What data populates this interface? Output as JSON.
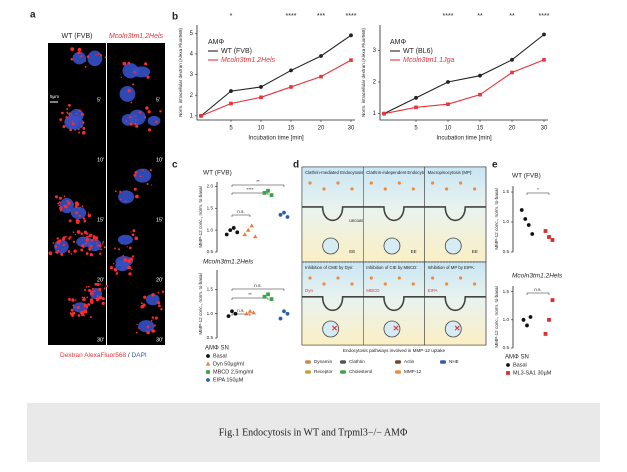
{
  "panel_labels": [
    "a",
    "b",
    "c",
    "d",
    "e"
  ],
  "panel_a": {
    "columns": [
      "WT (FVB)",
      "Mcoln3tm1.2Hels"
    ],
    "scale": "5µm",
    "times": [
      "5'",
      "10'",
      "15'",
      "20'",
      "30'"
    ],
    "footer_red": "Dextran AlexaFluor568",
    "footer_sep": " / ",
    "footer_blue": "DAPI"
  },
  "chart_data": [
    {
      "type": "line",
      "legend_title": "AMΦ",
      "x_label": "Incubation time [min]",
      "y_label": "Norm. intracellular dextran (Alexa Fluor568)",
      "categories": [
        null,
        "5",
        "10",
        "15",
        "20",
        "30"
      ],
      "significance": [
        null,
        "*",
        null,
        "****",
        "***",
        "****"
      ],
      "ylim": [
        0.8,
        5.4
      ],
      "yticks": [
        1,
        2,
        3,
        4,
        5
      ],
      "series": [
        {
          "name": "WT (FVB)",
          "color": "#222222",
          "values": [
            1,
            2.2,
            2.4,
            3.2,
            3.9,
            4.9
          ]
        },
        {
          "name": "Mcoln3tm1.2Hels",
          "color": "#e8333a",
          "values": [
            1,
            1.6,
            1.9,
            2.4,
            2.9,
            3.7
          ]
        }
      ]
    },
    {
      "type": "line",
      "legend_title": "AMΦ",
      "x_label": "Incubation time [min]",
      "y_label": "Norm. intracellular dextran (Alexa Fluor568)",
      "categories": [
        null,
        "5",
        "10",
        "15",
        "20",
        "30"
      ],
      "significance": [
        null,
        null,
        "****",
        "**",
        "**",
        "****"
      ],
      "ylim": [
        0.8,
        3.8
      ],
      "yticks": [
        1,
        2,
        3
      ],
      "series": [
        {
          "name": "WT (BL6)",
          "color": "#222222",
          "values": [
            1,
            1.5,
            2,
            2.2,
            2.7,
            3.5
          ]
        },
        {
          "name": "Mcoln3tm1.1Jga",
          "color": "#e8333a",
          "values": [
            1,
            1.2,
            1.3,
            1.6,
            2.3,
            2.7
          ]
        }
      ]
    },
    {
      "type": "dot",
      "title": "WT (FVB)",
      "y_label": "MMP-12 conc., norm. to basal",
      "legend_title": "AMΦ SN",
      "ylim": [
        0.5,
        2.1
      ],
      "yticks": [
        {
          "value": 0.5,
          "label": "0.5"
        },
        {
          "value": 1,
          "label": "1.0"
        },
        {
          "value": 1.5,
          "label": "1.5"
        },
        {
          "value": 2,
          "label": "2.0"
        }
      ],
      "brackets": [
        "**",
        "****",
        "n.s."
      ],
      "series": [
        {
          "name": "Basal",
          "color": "#111111",
          "marker": "circle",
          "values": [
            0.9,
            1.0,
            1.05,
            0.95
          ]
        },
        {
          "name": "Dyn 50µg/ml",
          "color": "#f07a3c",
          "marker": "triangle",
          "values": [
            0.9,
            1.0,
            1.1,
            0.85
          ]
        },
        {
          "name": "MBCD 2,5mg/ml",
          "color": "#3fa14a",
          "marker": "square",
          "values": [
            1.85,
            1.9,
            1.8
          ]
        },
        {
          "name": "EIPA 150µM",
          "color": "#2c5fa8",
          "marker": "circle",
          "values": [
            1.35,
            1.4,
            1.3
          ]
        }
      ]
    },
    {
      "type": "dot",
      "title": "Mcoln3tm1.2Hels",
      "y_label": "MMP-12 conc., norm. to basal",
      "ylim": [
        0.5,
        1.9
      ],
      "yticks": [
        {
          "value": 0.5,
          "label": "0.5"
        },
        {
          "value": 1,
          "label": "1.0"
        },
        {
          "value": 1.5,
          "label": "1.5"
        }
      ],
      "brackets": [
        "n.s.",
        "**",
        "n.s."
      ],
      "series": [
        {
          "color": "#111111",
          "marker": "circle",
          "values": [
            0.95,
            1.05,
            1.0
          ]
        },
        {
          "color": "#f07a3c",
          "marker": "triangle",
          "values": [
            1.0,
            1.05,
            1.02
          ]
        },
        {
          "color": "#3fa14a",
          "marker": "square",
          "values": [
            1.35,
            1.4,
            1.3
          ]
        },
        {
          "color": "#2c5fa8",
          "marker": "circle",
          "values": [
            0.9,
            1.05,
            1.0
          ]
        }
      ]
    },
    {
      "type": "dot",
      "title": "WT (FVB)",
      "y_label": "MMP-12 conc., norm. to basal",
      "legend_title": "AMΦ SN",
      "ylim": [
        0.5,
        1.6
      ],
      "yticks": [
        {
          "value": 0.5,
          "label": "0.5"
        },
        {
          "value": 1,
          "label": "1.0"
        },
        {
          "value": 1.5,
          "label": "1.5"
        }
      ],
      "brackets": [
        "*"
      ],
      "series": [
        {
          "name": "Basal",
          "color": "#111111",
          "marker": "circle",
          "values": [
            1.2,
            1.05,
            0.95,
            0.8
          ]
        },
        {
          "name": "ML3-SA1 30µM",
          "color": "#d62f2f",
          "marker": "square",
          "values": [
            0.85,
            0.75,
            0.7
          ]
        }
      ]
    },
    {
      "type": "dot",
      "title": "Mcoln3tm1.2Hels",
      "y_label": "MMP-12 conc., norm. to basal",
      "ylim": [
        0.5,
        1.6
      ],
      "yticks": [
        {
          "value": 0.5,
          "label": "0.5"
        },
        {
          "value": 1,
          "label": "1.0"
        },
        {
          "value": 1.5,
          "label": "1.5"
        }
      ],
      "brackets": [
        "n.s."
      ],
      "series": [
        {
          "color": "#111111",
          "marker": "circle",
          "values": [
            1.0,
            0.9,
            1.05
          ]
        },
        {
          "color": "#d62f2f",
          "marker": "square",
          "values": [
            0.75,
            1.0,
            1.35
          ]
        }
      ]
    }
  ],
  "diagram": {
    "boxes": [
      {
        "title": "Clathrin-mediated Endocytosis (CME):",
        "notes": [
          "uncoating",
          "EE"
        ]
      },
      {
        "title": "Clathrin-independent Endocytosis (CIE):",
        "notes": [
          "EE"
        ]
      },
      {
        "title": "Macropinocytosis (MP):",
        "notes": [
          "EE"
        ]
      },
      {
        "title": "Inhibition of CME by Dyn:",
        "notes": [
          "Dyn"
        ]
      },
      {
        "title": "Inhibition of CIE by MBCD:",
        "notes": [
          "MBCD"
        ]
      },
      {
        "title": "Inhibition of MP by EIPA:",
        "notes": [
          "EIPA"
        ]
      }
    ],
    "subtitle": "Endocytosis pathways involved in MMP-12 uptake",
    "legend": [
      "Dynamin",
      "Clathrin",
      "Actin",
      "NHE",
      "Receptor",
      "Cholesterol",
      "MMP-12"
    ]
  },
  "caption": "Fig.1 Endocytosis in WT and Trpml3−/− AMΦ"
}
